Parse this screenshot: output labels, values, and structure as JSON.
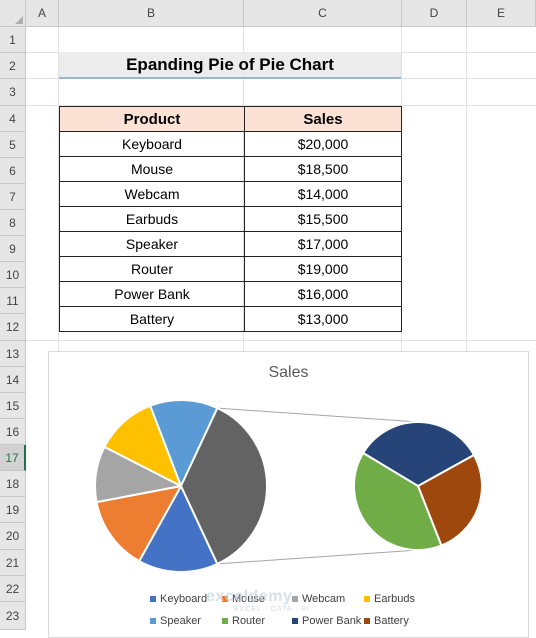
{
  "sheet": {
    "columns": [
      "A",
      "B",
      "C",
      "D",
      "E"
    ],
    "rows": [
      "1",
      "2",
      "3",
      "4",
      "5",
      "6",
      "7",
      "8",
      "9",
      "10",
      "11",
      "12",
      "13",
      "14",
      "15",
      "16",
      "17",
      "18",
      "19",
      "20",
      "21",
      "22",
      "23"
    ],
    "selected_row": "17"
  },
  "title": "Epanding Pie of Pie Chart",
  "table": {
    "headers": [
      "Product",
      "Sales"
    ],
    "rows": [
      [
        "Keyboard",
        "$20,000"
      ],
      [
        "Mouse",
        "$18,500"
      ],
      [
        "Webcam",
        "$14,000"
      ],
      [
        "Earbuds",
        "$15,500"
      ],
      [
        "Speaker",
        "$17,000"
      ],
      [
        "Router",
        "$19,000"
      ],
      [
        "Power Bank",
        "$16,000"
      ],
      [
        "Battery",
        "$13,000"
      ]
    ]
  },
  "chart_data": {
    "type": "pie",
    "subtype": "pie-of-pie",
    "title": "Sales",
    "categories": [
      "Keyboard",
      "Mouse",
      "Webcam",
      "Earbuds",
      "Speaker",
      "Router",
      "Power Bank",
      "Battery"
    ],
    "values": [
      20000,
      18500,
      14000,
      15500,
      17000,
      19000,
      16000,
      13000
    ],
    "colors": [
      "#4472c4",
      "#ed7d31",
      "#a5a5a5",
      "#ffc000",
      "#5b9bd5",
      "#70ad47",
      "#264478",
      "#9e480e"
    ],
    "other_color": "#636363",
    "secondary_plot_categories": [
      "Router",
      "Power Bank",
      "Battery"
    ],
    "legend_position": "bottom"
  },
  "watermark": {
    "brand": "exceldemy",
    "tagline": "EXCEL · DATA · BI"
  }
}
